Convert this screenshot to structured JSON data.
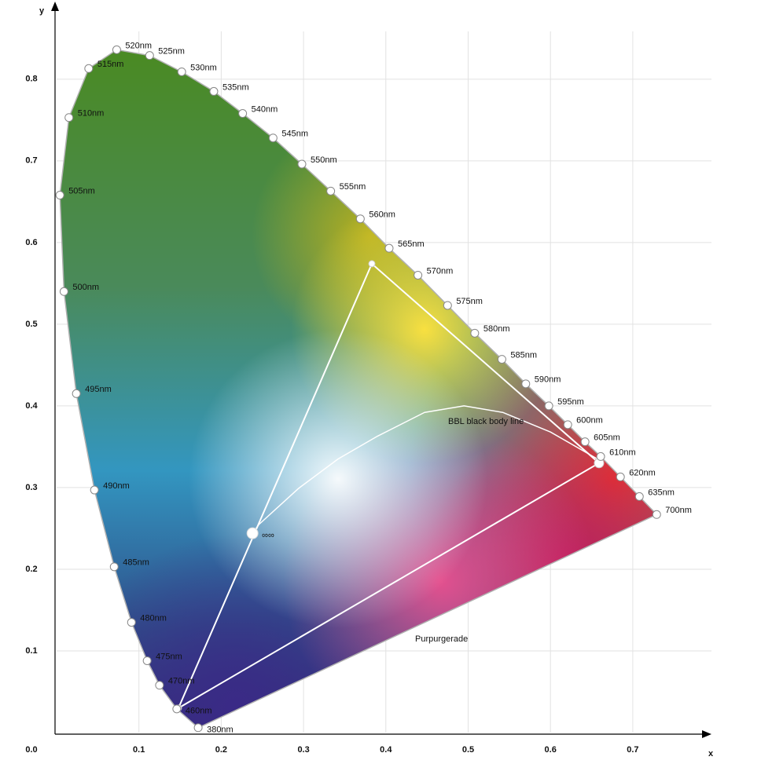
{
  "chart_data": {
    "type": "chromaticity",
    "x_label": "x",
    "y_label": "y",
    "xlim": [
      0,
      0.8
    ],
    "ylim": [
      0,
      0.895
    ],
    "xticks": [
      {
        "value": 0,
        "label": "0.0"
      },
      0.1,
      0.2,
      0.3,
      0.4,
      0.5,
      0.6,
      0.7
    ],
    "yticks": [
      0.1,
      0.2,
      0.3,
      0.4,
      0.5,
      0.6,
      0.7,
      0.8
    ],
    "grid": true,
    "locus": {
      "labels": [
        "380nm",
        "460nm",
        "470nm",
        "475nm",
        "480nm",
        "485nm",
        "490nm",
        "495nm",
        "500nm",
        "505nm",
        "510nm",
        "515nm",
        "520nm",
        "525nm",
        "530nm",
        "535nm",
        "540nm",
        "545nm",
        "550nm",
        "555nm",
        "560nm",
        "565nm",
        "570nm",
        "575nm",
        "580nm",
        "585nm",
        "590nm",
        "595nm",
        "600nm",
        "605nm",
        "610nm",
        "620nm",
        "635nm",
        "700nm"
      ],
      "x": [
        0.172,
        0.146,
        0.125,
        0.11,
        0.091,
        0.07,
        0.046,
        0.024,
        0.009,
        0.004,
        0.015,
        0.039,
        0.073,
        0.113,
        0.152,
        0.191,
        0.226,
        0.263,
        0.298,
        0.333,
        0.369,
        0.404,
        0.439,
        0.475,
        0.508,
        0.541,
        0.57,
        0.598,
        0.621,
        0.642,
        0.661,
        0.685,
        0.708,
        0.729
      ],
      "y": [
        0.006,
        0.029,
        0.058,
        0.088,
        0.135,
        0.203,
        0.297,
        0.415,
        0.54,
        0.658,
        0.753,
        0.813,
        0.836,
        0.829,
        0.809,
        0.785,
        0.758,
        0.728,
        0.696,
        0.663,
        0.629,
        0.593,
        0.56,
        0.523,
        0.489,
        0.457,
        0.427,
        0.4,
        0.377,
        0.356,
        0.338,
        0.313,
        0.289,
        0.267
      ]
    },
    "gamut": {
      "x": [
        0.383,
        0.148,
        0.659
      ],
      "y": [
        0.574,
        0.03,
        0.33
      ]
    },
    "white_point": {
      "x": 0.238,
      "y": 0.244,
      "label": "∞∞"
    },
    "bbl": {
      "label": "BBL black body line",
      "x": [
        0.238,
        0.246,
        0.294,
        0.342,
        0.39,
        0.447,
        0.495,
        0.542,
        0.6,
        0.657
      ],
      "y": [
        0.244,
        0.255,
        0.299,
        0.335,
        0.363,
        0.392,
        0.4,
        0.392,
        0.368,
        0.335
      ]
    },
    "purple_line_label": "Purpurgerade"
  }
}
